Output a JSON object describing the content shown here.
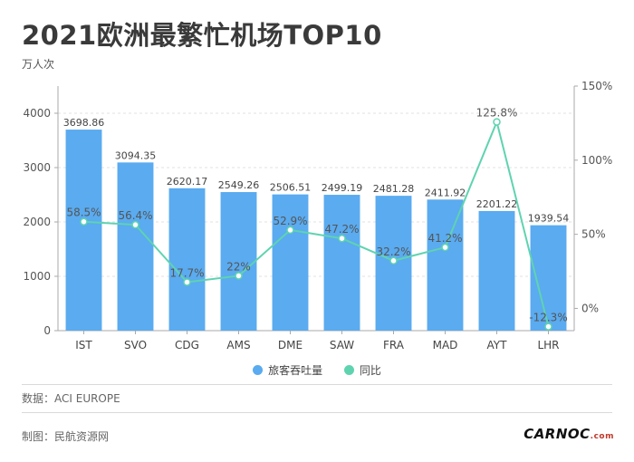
{
  "title": "2021欧洲最繁忙机场TOP10",
  "unit": "万人次",
  "source": "数据：ACI EUROPE",
  "credit": "制图：民航资源网",
  "logo": {
    "text": "CARNOC",
    "suffix": ".com"
  },
  "colors": {
    "bar": "#5aabf0",
    "line": "#5fd3b0",
    "grid": "#e2e2e2",
    "axis": "#aaaaaa"
  },
  "chart_data": {
    "type": "bar+line",
    "categories": [
      "IST",
      "SVO",
      "CDG",
      "AMS",
      "DME",
      "SAW",
      "FRA",
      "MAD",
      "AYT",
      "LHR"
    ],
    "series": [
      {
        "name": "旅客吞吐量",
        "type": "bar",
        "axis": "left",
        "values": [
          3698.86,
          3094.35,
          2620.17,
          2549.26,
          2506.51,
          2499.19,
          2481.28,
          2411.92,
          2201.22,
          1939.54
        ],
        "labels": [
          "3698.86",
          "3094.35",
          "2620.17",
          "2549.26",
          "2506.51",
          "2499.19",
          "2481.28",
          "2411.92",
          "2201.22",
          "1939.54"
        ]
      },
      {
        "name": "同比",
        "type": "line",
        "axis": "right",
        "values": [
          58.5,
          56.4,
          17.7,
          22,
          52.9,
          47.2,
          32.2,
          41.2,
          125.8,
          -12.3
        ],
        "labels": [
          "58.5%",
          "56.4%",
          "17.7%",
          "22%",
          "52.9%",
          "47.2%",
          "32.2%",
          "41.2%",
          "125.8%",
          "-12.3%"
        ]
      }
    ],
    "y_left": {
      "min": 0,
      "max": 4500,
      "ticks": [
        0,
        1000,
        2000,
        3000,
        4000
      ],
      "tick_labels": [
        "0",
        "1000",
        "2000",
        "3000",
        "4000"
      ]
    },
    "y_right": {
      "min": -15,
      "max": 150,
      "ticks": [
        0,
        50,
        100,
        150
      ],
      "tick_labels": [
        "0%",
        "50%",
        "100%",
        "150%"
      ]
    },
    "grid": true,
    "legend_position": "bottom"
  }
}
